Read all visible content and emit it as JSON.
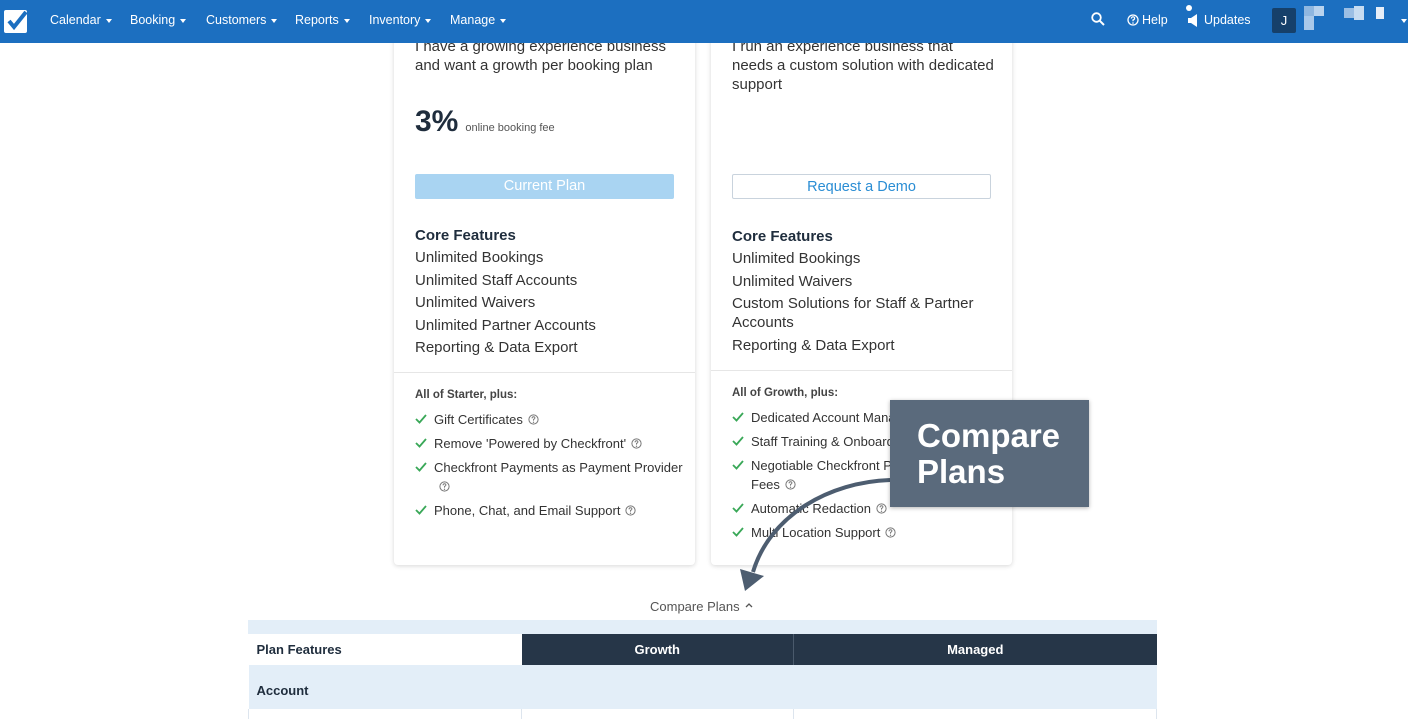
{
  "nav": {
    "items": [
      "Calendar",
      "Booking",
      "Customers",
      "Reports",
      "Inventory",
      "Manage"
    ],
    "help": "Help",
    "updates": "Updates",
    "avatar": "J"
  },
  "plans": [
    {
      "description": "I have a growing experience business and want a growth per booking plan",
      "price": "3%",
      "price_note": "online booking fee",
      "button": "Current Plan",
      "core_title": "Core Features",
      "core": [
        "Unlimited Bookings",
        "Unlimited Staff Accounts",
        "Unlimited Waivers",
        "Unlimited Partner Accounts",
        "Reporting & Data Export"
      ],
      "extras_title": "All of Starter, plus:",
      "extras": [
        "Gift Certificates",
        "Remove 'Powered by Checkfront'",
        "Checkfront Payments as Payment Provider",
        "Phone, Chat, and Email Support"
      ]
    },
    {
      "description": "I run an experience business that needs a custom solution with dedicated support",
      "button": "Request a Demo",
      "core_title": "Core Features",
      "core": [
        "Unlimited Bookings",
        "Unlimited Waivers",
        "Custom Solutions for Staff & Partner Accounts",
        "Reporting & Data Export"
      ],
      "extras_title": "All of Growth, plus:",
      "extras": [
        "Dedicated Account Manager",
        "Staff Training & Onboarding",
        "Negotiable Checkfront Payment Processing Fees",
        "Automatic Redaction",
        "Multi Location Support"
      ]
    }
  ],
  "callout": "Compare Plans",
  "compare_toggle": "Compare Plans",
  "table": {
    "headers": [
      "Plan Features",
      "Growth",
      "Managed"
    ],
    "section": "Account"
  }
}
